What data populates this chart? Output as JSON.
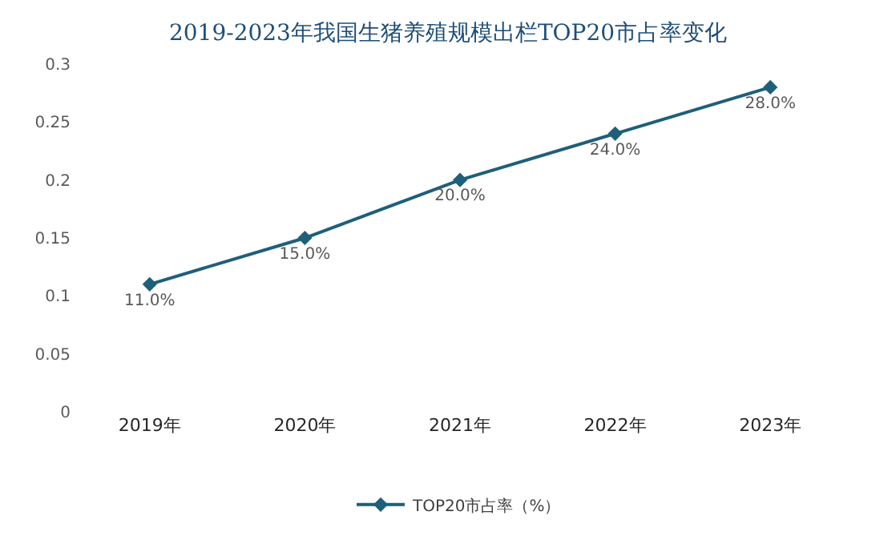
{
  "chart_data": {
    "type": "line",
    "title": "2019-2023年我国生猪养殖规模出栏TOP20市占率变化",
    "categories": [
      "2019年",
      "2020年",
      "2021年",
      "2022年",
      "2023年"
    ],
    "series": [
      {
        "name": "TOP20市占率（%）",
        "color": "#1f5f7a",
        "values": [
          0.11,
          0.15,
          0.2,
          0.24,
          0.28
        ],
        "value_labels": [
          "11.0%",
          "15.0%",
          "20.0%",
          "24.0%",
          "28.0%"
        ]
      }
    ],
    "ylim": [
      0,
      0.3
    ],
    "yticks": [
      0,
      0.05,
      0.1,
      0.15,
      0.2,
      0.25,
      0.3
    ],
    "grid": false,
    "legend": "bottom",
    "marker": "diamond",
    "line_style": "solid"
  }
}
